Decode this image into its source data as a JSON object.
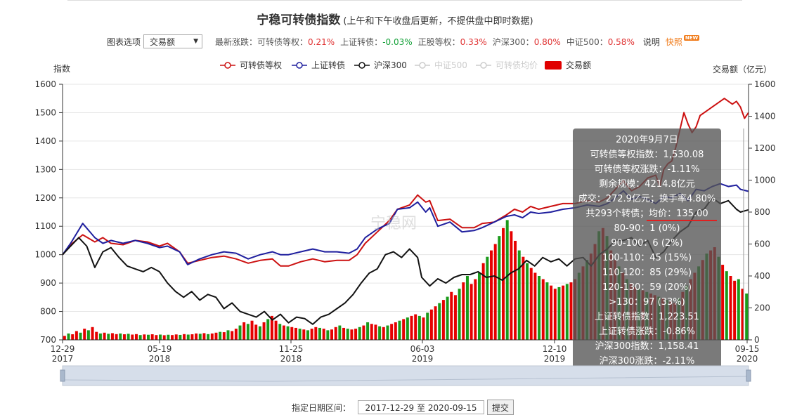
{
  "header": {
    "title": "宁稳可转债指数",
    "subtitle": "(上午和下午收盘后更新，不提供盘中即时数据)"
  },
  "options": {
    "label": "图表选项",
    "select_value": "交易额",
    "latest_label": "最新涨跌：",
    "changes": [
      {
        "label": "可转债等权：",
        "value": "0.21%",
        "dir": "pos"
      },
      {
        "label": "上证转债：",
        "value": "-0.03%",
        "dir": "neg"
      },
      {
        "label": "正股等权：",
        "value": "0.33%",
        "dir": "pos"
      },
      {
        "label": "沪深300：",
        "value": "0.80%",
        "dir": "pos"
      },
      {
        "label": "中证500：",
        "value": "0.58%",
        "dir": "pos"
      }
    ],
    "explain": "说明",
    "quick": "快照",
    "new_badge": "NEW"
  },
  "footer": {
    "date_label": "指定日期区间：",
    "date_range": "2017-12-29 至 2020-09-15",
    "submit": "提交"
  },
  "chart_data": {
    "type": "line",
    "yleft_label": "指数",
    "yright_label": "交易额（亿元）",
    "yleft_ticks": [
      "1600",
      "1500",
      "1400",
      "1300",
      "1200",
      "1100",
      "1000",
      "900",
      "800",
      "700"
    ],
    "yright_ticks": [
      "1600",
      "1400",
      "1200",
      "1000",
      "800",
      "600",
      "400",
      "200",
      "0"
    ],
    "yleft_lim": [
      700,
      1600
    ],
    "yright_lim": [
      0,
      1600
    ],
    "x_ticks": [
      {
        "d": "12-29",
        "y": "2017"
      },
      {
        "d": "05-19",
        "y": "2018"
      },
      {
        "d": "11-25",
        "y": "2018"
      },
      {
        "d": "06-03",
        "y": "2019"
      },
      {
        "d": "12-10",
        "y": "2019"
      },
      {
        "d": "09-15",
        "y": "2020"
      }
    ],
    "legend": [
      {
        "name": "可转债等权",
        "color": "#cc1111",
        "kind": "line",
        "active": true
      },
      {
        "name": "上证转债",
        "color": "#1f1f9e",
        "kind": "line",
        "active": true
      },
      {
        "name": "沪深300",
        "color": "#111111",
        "kind": "line",
        "active": true
      },
      {
        "name": "中证500",
        "color": "#cccccc",
        "kind": "line",
        "active": false
      },
      {
        "name": "可转债均价",
        "color": "#cccccc",
        "kind": "line",
        "active": false
      },
      {
        "name": "交易额",
        "color": "#e00000",
        "kind": "rect",
        "active": true
      }
    ],
    "watermark": "宁稳网",
    "series": [
      {
        "name": "可转债等权",
        "color": "#cc1111",
        "points": [
          [
            0,
            1000
          ],
          [
            2,
            1035
          ],
          [
            5,
            1070
          ],
          [
            8,
            1045
          ],
          [
            10,
            1060
          ],
          [
            12,
            1040
          ],
          [
            15,
            1035
          ],
          [
            18,
            1050
          ],
          [
            21,
            1045
          ],
          [
            24,
            1030
          ],
          [
            26,
            1040
          ],
          [
            29,
            1010
          ],
          [
            31,
            970
          ],
          [
            34,
            980
          ],
          [
            37,
            990
          ],
          [
            40,
            995
          ],
          [
            43,
            985
          ],
          [
            46,
            970
          ],
          [
            49,
            980
          ],
          [
            52,
            985
          ],
          [
            54,
            960
          ],
          [
            56,
            960
          ],
          [
            59,
            975
          ],
          [
            62,
            985
          ],
          [
            65,
            975
          ],
          [
            68,
            980
          ],
          [
            71,
            980
          ],
          [
            73,
            1000
          ],
          [
            75,
            1040
          ],
          [
            78,
            1080
          ],
          [
            81,
            1120
          ],
          [
            83,
            1160
          ],
          [
            86,
            1175
          ],
          [
            88,
            1210
          ],
          [
            90,
            1185
          ],
          [
            91,
            1190
          ],
          [
            93,
            1120
          ],
          [
            96,
            1125
          ],
          [
            99,
            1095
          ],
          [
            102,
            1095
          ],
          [
            104,
            1110
          ],
          [
            107,
            1115
          ],
          [
            110,
            1140
          ],
          [
            112,
            1160
          ],
          [
            114,
            1150
          ],
          [
            116,
            1170
          ],
          [
            118,
            1160
          ],
          [
            121,
            1170
          ],
          [
            124,
            1180
          ],
          [
            127,
            1180
          ],
          [
            130,
            1190
          ],
          [
            133,
            1185
          ],
          [
            135,
            1200
          ],
          [
            137,
            1230
          ],
          [
            139,
            1260
          ],
          [
            141,
            1225
          ],
          [
            143,
            1240
          ],
          [
            145,
            1270
          ],
          [
            147,
            1280
          ],
          [
            148,
            1240
          ],
          [
            149,
            1300
          ],
          [
            150,
            1320
          ],
          [
            151,
            1330
          ],
          [
            152,
            1380
          ],
          [
            153,
            1440
          ],
          [
            154,
            1500
          ],
          [
            155,
            1460
          ],
          [
            156,
            1430
          ],
          [
            157,
            1450
          ],
          [
            158,
            1490
          ],
          [
            160,
            1510
          ],
          [
            162,
            1530
          ],
          [
            164,
            1550
          ],
          [
            166,
            1530
          ],
          [
            167,
            1540
          ],
          [
            168,
            1520
          ],
          [
            169,
            1480
          ],
          [
            170,
            1500
          ]
        ]
      },
      {
        "name": "上证转债",
        "color": "#1f1f9e",
        "points": [
          [
            0,
            1000
          ],
          [
            2,
            1040
          ],
          [
            5,
            1110
          ],
          [
            8,
            1060
          ],
          [
            10,
            1040
          ],
          [
            12,
            1050
          ],
          [
            15,
            1040
          ],
          [
            18,
            1050
          ],
          [
            21,
            1040
          ],
          [
            24,
            1025
          ],
          [
            26,
            1030
          ],
          [
            29,
            1010
          ],
          [
            31,
            965
          ],
          [
            34,
            985
          ],
          [
            37,
            1000
          ],
          [
            40,
            1010
          ],
          [
            43,
            1005
          ],
          [
            46,
            985
          ],
          [
            49,
            1000
          ],
          [
            52,
            1010
          ],
          [
            54,
            1000
          ],
          [
            56,
            1000
          ],
          [
            59,
            1010
          ],
          [
            62,
            1020
          ],
          [
            65,
            1010
          ],
          [
            68,
            1010
          ],
          [
            71,
            1005
          ],
          [
            73,
            1020
          ],
          [
            75,
            1060
          ],
          [
            78,
            1090
          ],
          [
            81,
            1110
          ],
          [
            83,
            1160
          ],
          [
            86,
            1165
          ],
          [
            88,
            1185
          ],
          [
            90,
            1150
          ],
          [
            91,
            1165
          ],
          [
            93,
            1100
          ],
          [
            96,
            1115
          ],
          [
            99,
            1080
          ],
          [
            102,
            1085
          ],
          [
            104,
            1095
          ],
          [
            107,
            1115
          ],
          [
            110,
            1135
          ],
          [
            112,
            1140
          ],
          [
            114,
            1130
          ],
          [
            116,
            1150
          ],
          [
            118,
            1145
          ],
          [
            121,
            1150
          ],
          [
            124,
            1160
          ],
          [
            127,
            1165
          ],
          [
            130,
            1175
          ],
          [
            133,
            1170
          ],
          [
            135,
            1180
          ],
          [
            137,
            1200
          ],
          [
            139,
            1225
          ],
          [
            141,
            1195
          ],
          [
            143,
            1205
          ],
          [
            145,
            1195
          ],
          [
            147,
            1180
          ],
          [
            149,
            1205
          ],
          [
            151,
            1200
          ],
          [
            153,
            1215
          ],
          [
            155,
            1190
          ],
          [
            157,
            1230
          ],
          [
            159,
            1225
          ],
          [
            161,
            1240
          ],
          [
            163,
            1250
          ],
          [
            165,
            1240
          ],
          [
            167,
            1245
          ],
          [
            168,
            1230
          ],
          [
            170,
            1223
          ]
        ]
      },
      {
        "name": "沪深300",
        "color": "#111111",
        "points": [
          [
            0,
            1000
          ],
          [
            2,
            1030
          ],
          [
            4,
            1060
          ],
          [
            6,
            1030
          ],
          [
            8,
            955
          ],
          [
            10,
            1010
          ],
          [
            12,
            1025
          ],
          [
            14,
            990
          ],
          [
            16,
            960
          ],
          [
            18,
            950
          ],
          [
            20,
            940
          ],
          [
            22,
            955
          ],
          [
            24,
            940
          ],
          [
            26,
            900
          ],
          [
            28,
            870
          ],
          [
            30,
            850
          ],
          [
            32,
            870
          ],
          [
            34,
            840
          ],
          [
            36,
            860
          ],
          [
            38,
            850
          ],
          [
            40,
            810
          ],
          [
            42,
            830
          ],
          [
            44,
            800
          ],
          [
            46,
            790
          ],
          [
            48,
            780
          ],
          [
            50,
            800
          ],
          [
            52,
            770
          ],
          [
            54,
            790
          ],
          [
            56,
            760
          ],
          [
            58,
            780
          ],
          [
            60,
            775
          ],
          [
            62,
            755
          ],
          [
            64,
            780
          ],
          [
            66,
            790
          ],
          [
            68,
            810
          ],
          [
            70,
            830
          ],
          [
            72,
            860
          ],
          [
            74,
            900
          ],
          [
            76,
            935
          ],
          [
            78,
            950
          ],
          [
            80,
            1000
          ],
          [
            82,
            1010
          ],
          [
            84,
            990
          ],
          [
            86,
            1020
          ],
          [
            88,
            990
          ],
          [
            89,
            920
          ],
          [
            91,
            890
          ],
          [
            93,
            915
          ],
          [
            95,
            900
          ],
          [
            97,
            920
          ],
          [
            99,
            930
          ],
          [
            101,
            930
          ],
          [
            103,
            940
          ],
          [
            105,
            920
          ],
          [
            107,
            925
          ],
          [
            109,
            910
          ],
          [
            111,
            935
          ],
          [
            113,
            950
          ],
          [
            115,
            980
          ],
          [
            117,
            960
          ],
          [
            119,
            990
          ],
          [
            121,
            975
          ],
          [
            123,
            985
          ],
          [
            125,
            960
          ],
          [
            127,
            985
          ],
          [
            129,
            990
          ],
          [
            131,
            960
          ],
          [
            133,
            1000
          ],
          [
            135,
            1020
          ],
          [
            137,
            1050
          ],
          [
            139,
            1050
          ],
          [
            141,
            1060
          ],
          [
            143,
            1030
          ],
          [
            145,
            1050
          ],
          [
            147,
            990
          ],
          [
            149,
            1010
          ],
          [
            151,
            1050
          ],
          [
            153,
            1080
          ],
          [
            155,
            1100
          ],
          [
            157,
            1150
          ],
          [
            159,
            1160
          ],
          [
            161,
            1200
          ],
          [
            163,
            1180
          ],
          [
            165,
            1190
          ],
          [
            167,
            1160
          ],
          [
            168,
            1150
          ],
          [
            170,
            1158
          ]
        ]
      }
    ],
    "volume": {
      "name": "交易额",
      "values": [
        25,
        40,
        35,
        55,
        45,
        70,
        60,
        80,
        50,
        40,
        45,
        38,
        42,
        36,
        40,
        35,
        38,
        33,
        36,
        30,
        34,
        32,
        35,
        30,
        33,
        29,
        32,
        30,
        34,
        31,
        36,
        33,
        35,
        40,
        38,
        42,
        36,
        40,
        45,
        50,
        48,
        60,
        55,
        70,
        90,
        110,
        100,
        120,
        95,
        85,
        110,
        130,
        150,
        120,
        100,
        90,
        85,
        80,
        75,
        70,
        65,
        60,
        70,
        80,
        75,
        70,
        60,
        65,
        80,
        90,
        75,
        70,
        65,
        70,
        80,
        90,
        110,
        100,
        95,
        85,
        80,
        90,
        100,
        110,
        120,
        130,
        140,
        150,
        160,
        150,
        140,
        170,
        190,
        210,
        230,
        250,
        270,
        300,
        280,
        320,
        360,
        400,
        350,
        380,
        420,
        480,
        520,
        560,
        600,
        650,
        700,
        750,
        680,
        620,
        560,
        520,
        480,
        450,
        420,
        400,
        380,
        360,
        340,
        320,
        330,
        340,
        350,
        360,
        380,
        420,
        460,
        500,
        540,
        600,
        680,
        700,
        650,
        560,
        500,
        460,
        420,
        380,
        350,
        330,
        320,
        310,
        300,
        290,
        280,
        270,
        260,
        250,
        240,
        230,
        260,
        300,
        340,
        380,
        420,
        460,
        500,
        540,
        560,
        580,
        520,
        470,
        430,
        400,
        370,
        380,
        320,
        290
      ]
    },
    "tooltip": {
      "date": "2020年9月7日",
      "lines": [
        "可转债等权指数：1,530.08",
        "可转债等权涨跌：-1.11%",
        "剩余规模：4214.8亿元",
        "成交：272.9亿元；换手率4.80%",
        "共293个转债；均价：135.00",
        "80-90：1 (0%)",
        "90-100：6 (2%)",
        "100-110：45 (15%)",
        "110-120：85 (29%)",
        "120-130：59 (20%)",
        ">130：97 (33%)",
        "上证转债指数：1,223.51",
        "上证转债涨跌：-0.86%",
        "沪深300指数：1,158.41",
        "沪深300涨跌：-2.11%"
      ]
    }
  }
}
